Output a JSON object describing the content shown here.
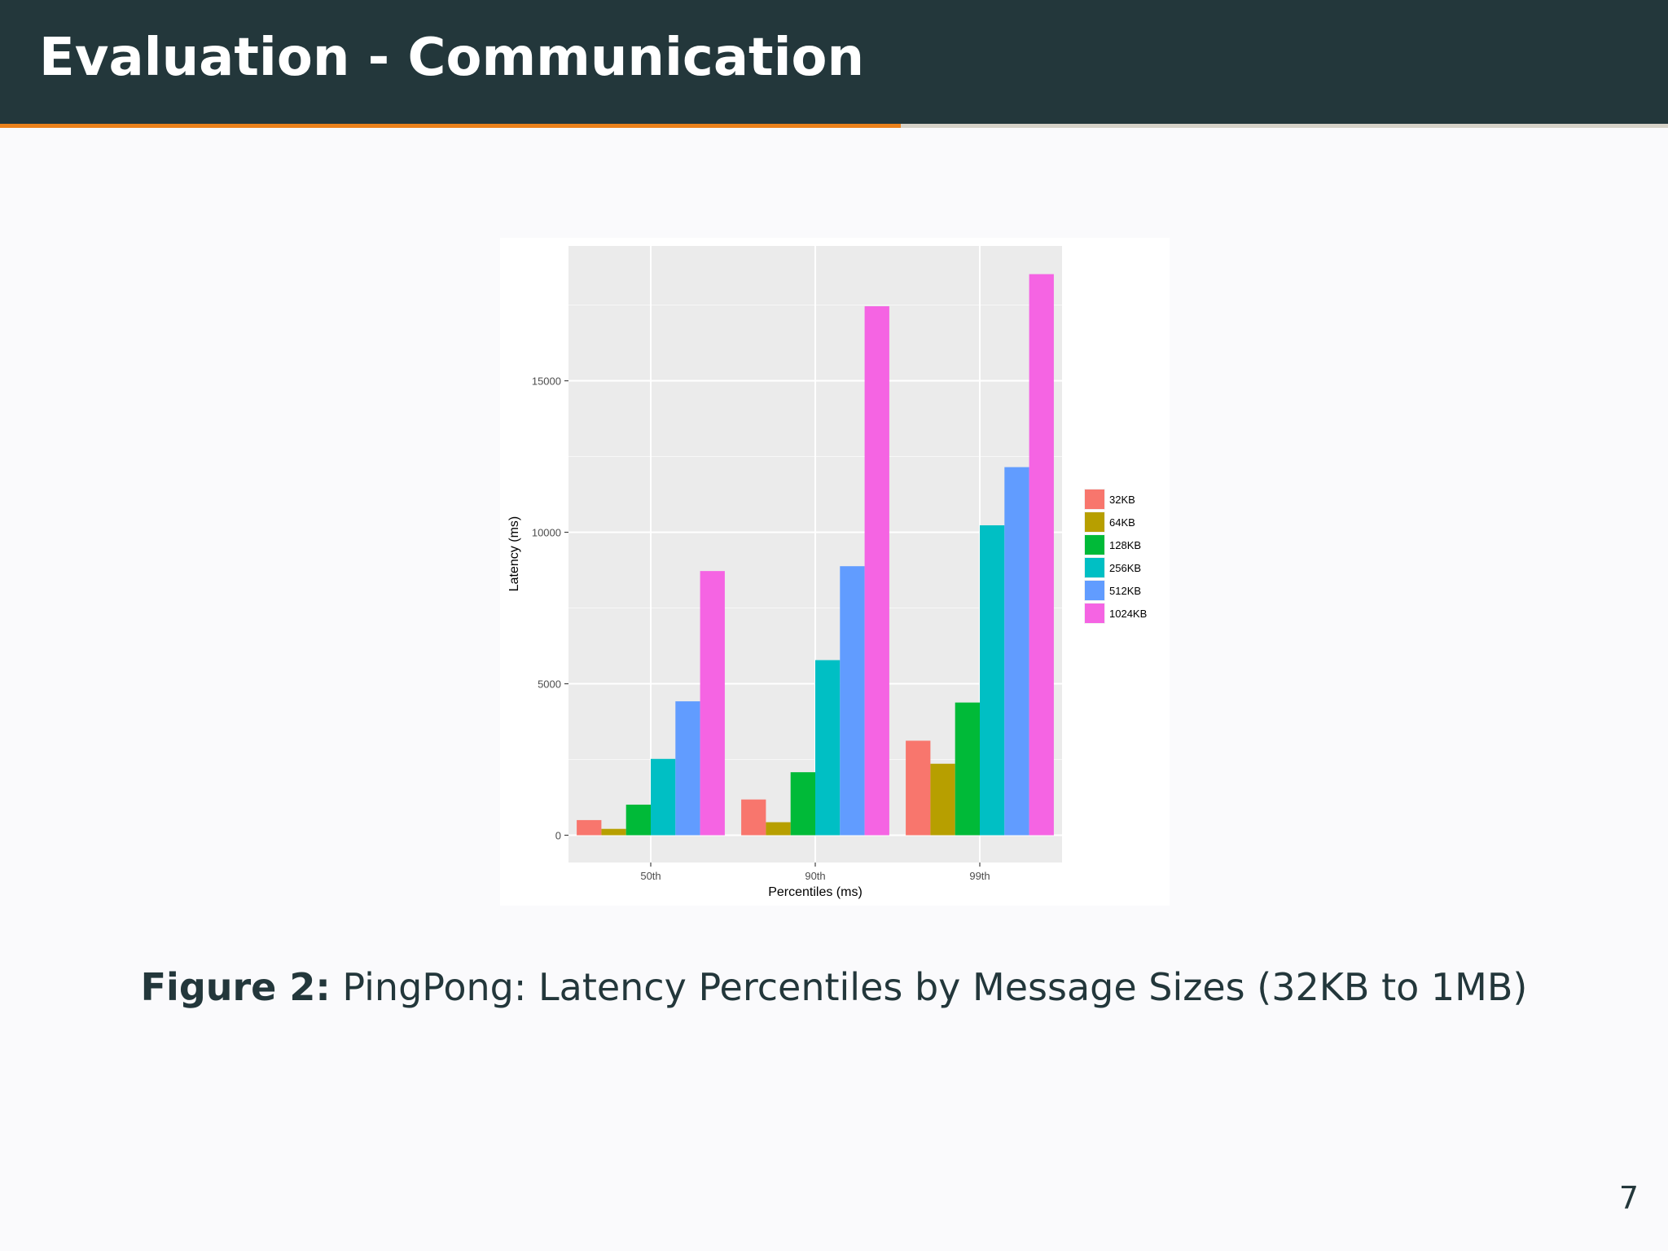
{
  "slide": {
    "title": "Evaluation - Communication",
    "caption_label": "Figure 2:",
    "caption_text": "PingPong: Latency Percentiles by Message Sizes (32KB to 1MB)",
    "page_number": "7",
    "progress": 0.54
  },
  "colors": {
    "header_bg": "#23373b",
    "accent": "#eb811b",
    "slide_bg": "#fafafc",
    "plot_bg": "#ebebeb"
  },
  "chart_data": {
    "type": "bar",
    "categories": [
      "50th",
      "90th",
      "99th"
    ],
    "series": [
      {
        "name": "32KB",
        "color": "#f8766d",
        "values": [
          500,
          1180,
          3120
        ]
      },
      {
        "name": "64KB",
        "color": "#b79f00",
        "values": [
          210,
          430,
          2360
        ]
      },
      {
        "name": "128KB",
        "color": "#00ba38",
        "values": [
          1010,
          2080,
          4380
        ]
      },
      {
        "name": "256KB",
        "color": "#00bfc4",
        "values": [
          2520,
          5780,
          10230
        ]
      },
      {
        "name": "512KB",
        "color": "#619cff",
        "values": [
          4420,
          8880,
          12150
        ]
      },
      {
        "name": "1024KB",
        "color": "#f564e3",
        "values": [
          8720,
          17460,
          18520
        ]
      }
    ],
    "xlabel": "Percentiles (ms)",
    "ylabel": "Latency (ms)",
    "yticks": [
      0,
      5000,
      10000,
      15000
    ],
    "ylim": [
      -900,
      19450
    ],
    "grid": true,
    "legend_position": "right"
  }
}
